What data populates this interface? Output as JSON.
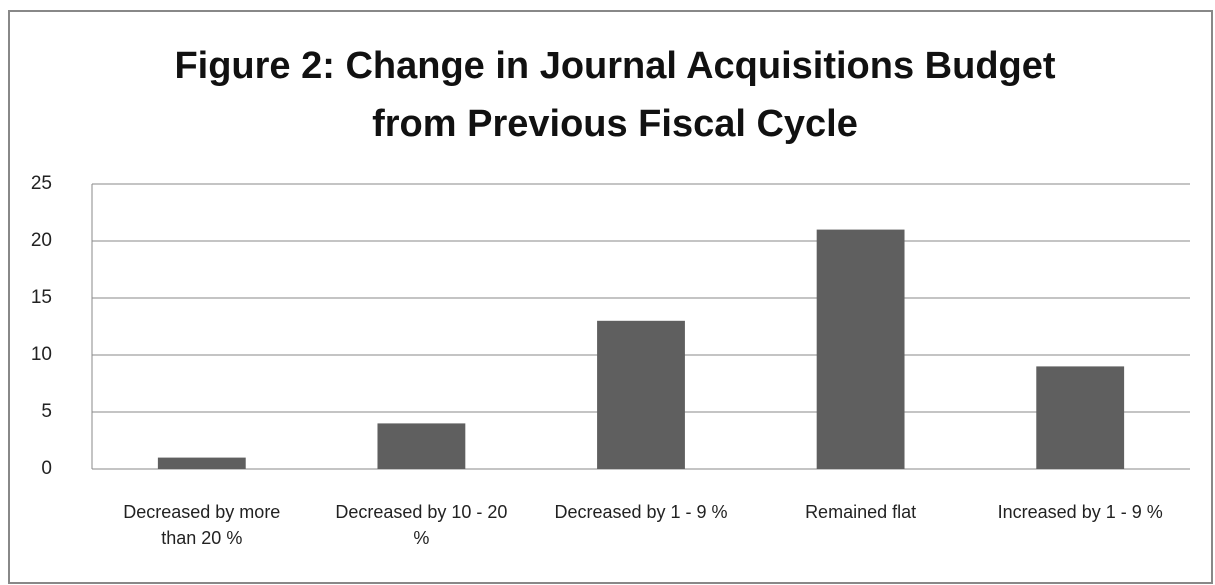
{
  "chart_data": {
    "type": "bar",
    "title": [
      "Figure 2: Change in Journal Acquisitions Budget",
      "from Previous Fiscal Cycle"
    ],
    "categories": [
      "Decreased by more than 20 %",
      "Decreased by 10 - 20 %",
      "Decreased by 1 - 9 %",
      "Remained flat",
      "Increased by 1 - 9 %"
    ],
    "values": [
      1,
      4,
      13,
      21,
      9
    ],
    "color": "#5f5f5f",
    "ylim": [
      0,
      25
    ],
    "yticks": [
      0,
      5,
      10,
      15,
      20,
      25
    ],
    "grid": true
  }
}
